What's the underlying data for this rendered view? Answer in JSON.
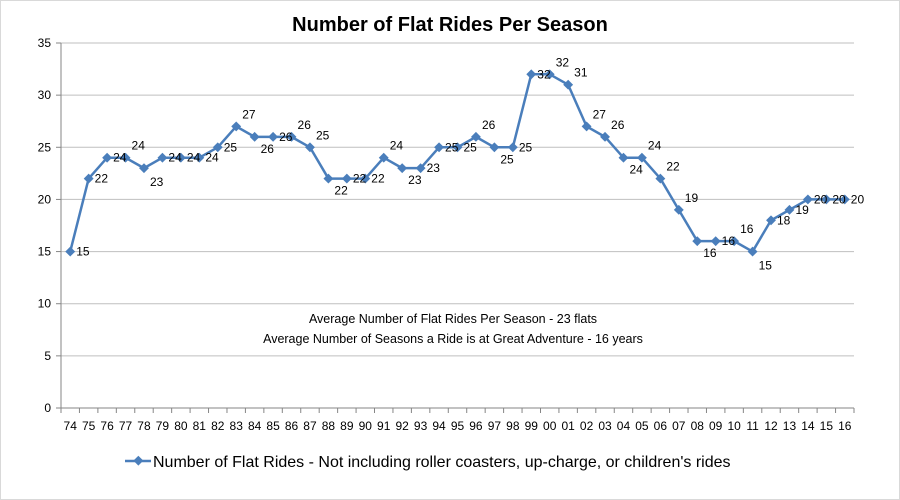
{
  "chart_data": {
    "type": "line",
    "title": "Number of Flat Rides Per Season",
    "xlabel": "",
    "ylabel": "",
    "ylim": [
      0,
      35
    ],
    "y_ticks": [
      "0",
      "5",
      "10",
      "15",
      "20",
      "25",
      "30",
      "35"
    ],
    "grid": true,
    "legend_position": "bottom",
    "categories": [
      "74",
      "75",
      "76",
      "77",
      "78",
      "79",
      "80",
      "81",
      "82",
      "83",
      "84",
      "85",
      "86",
      "87",
      "88",
      "89",
      "90",
      "91",
      "92",
      "93",
      "94",
      "95",
      "96",
      "97",
      "98",
      "99",
      "00",
      "01",
      "02",
      "03",
      "04",
      "05",
      "06",
      "07",
      "08",
      "09",
      "10",
      "11",
      "12",
      "13",
      "14",
      "15",
      "16"
    ],
    "series": [
      {
        "name": "Number of Flat Rides - Not including roller coasters, up-charge, or children's rides",
        "color": "#4a7ebb",
        "values": [
          15,
          22,
          24,
          24,
          23,
          24,
          24,
          24,
          25,
          27,
          26,
          26,
          26,
          25,
          22,
          22,
          22,
          24,
          23,
          23,
          25,
          25,
          26,
          25,
          25,
          32,
          32,
          31,
          27,
          26,
          24,
          24,
          22,
          19,
          16,
          16,
          16,
          15,
          18,
          19,
          20,
          20,
          20
        ]
      }
    ],
    "annotations": [
      "Average Number of Flat Rides Per Season - 23 flats",
      "Average Number of Seasons a Ride is at Great Adventure - 16 years"
    ]
  }
}
